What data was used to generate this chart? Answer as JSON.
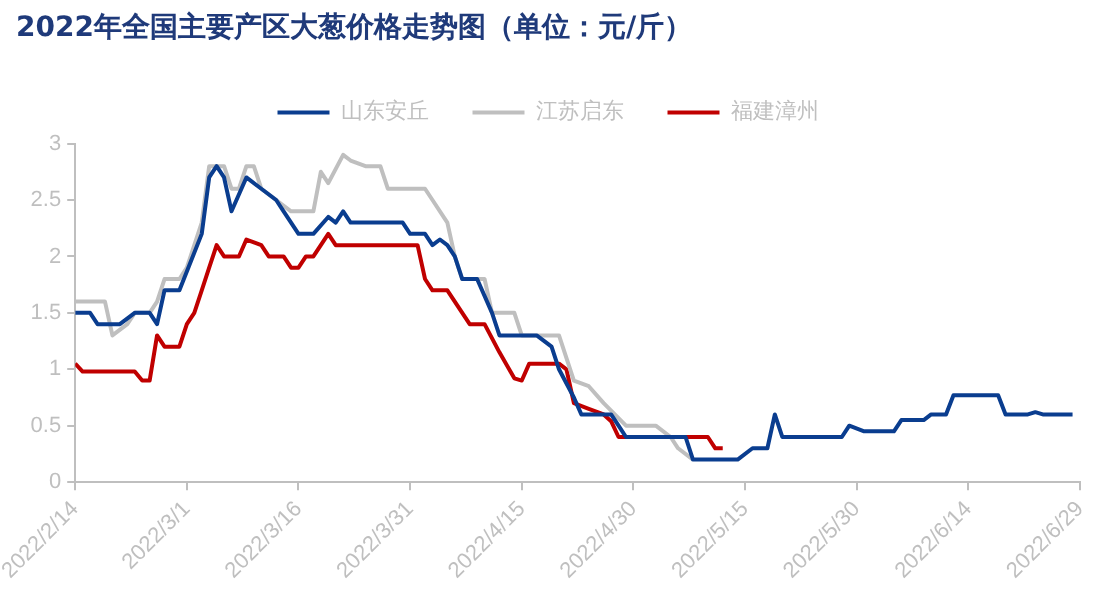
{
  "chart_data": {
    "type": "line",
    "title": "2022年全国主要产区大葱价格走势图（单位：元/斤）",
    "ylim": [
      0,
      3
    ],
    "yticks": [
      0,
      0.5,
      1,
      1.5,
      2,
      2.5,
      3
    ],
    "xlim": [
      "2022-02-14",
      "2022-06-29"
    ],
    "xticks": [
      {
        "value": "2022-02-14",
        "label": "2022/2/14"
      },
      {
        "value": "2022-03-01",
        "label": "2022/3/1"
      },
      {
        "value": "2022-03-16",
        "label": "2022/3/16"
      },
      {
        "value": "2022-03-31",
        "label": "2022/3/31"
      },
      {
        "value": "2022-04-15",
        "label": "2022/4/15"
      },
      {
        "value": "2022-04-30",
        "label": "2022/4/30"
      },
      {
        "value": "2022-05-15",
        "label": "2022/5/15"
      },
      {
        "value": "2022-05-30",
        "label": "2022/5/30"
      },
      {
        "value": "2022-06-14",
        "label": "2022/6/14"
      },
      {
        "value": "2022-06-29",
        "label": "2022/6/29"
      }
    ],
    "grid": false,
    "legend": "top",
    "marker": "none",
    "line_style": "solid",
    "series": [
      {
        "name": "山东安丘",
        "color": "#0a3d8f",
        "x": [
          "2022-02-14",
          "2022-02-16",
          "2022-02-17",
          "2022-02-20",
          "2022-02-22",
          "2022-02-24",
          "2022-02-25",
          "2022-02-26",
          "2022-02-28",
          "2022-03-03",
          "2022-03-04",
          "2022-03-05",
          "2022-03-06",
          "2022-03-07",
          "2022-03-09",
          "2022-03-11",
          "2022-03-13",
          "2022-03-14",
          "2022-03-16",
          "2022-03-18",
          "2022-03-20",
          "2022-03-21",
          "2022-03-22",
          "2022-03-23",
          "2022-03-30",
          "2022-03-31",
          "2022-04-02",
          "2022-04-03",
          "2022-04-04",
          "2022-04-05",
          "2022-04-06",
          "2022-04-07",
          "2022-04-09",
          "2022-04-11",
          "2022-04-12",
          "2022-04-17",
          "2022-04-19",
          "2022-04-20",
          "2022-04-22",
          "2022-04-23",
          "2022-04-27",
          "2022-04-28",
          "2022-04-29",
          "2022-05-07",
          "2022-05-08",
          "2022-05-14",
          "2022-05-16",
          "2022-05-18",
          "2022-05-19",
          "2022-05-20",
          "2022-05-28",
          "2022-05-29",
          "2022-05-31",
          "2022-06-04",
          "2022-06-05",
          "2022-06-08",
          "2022-06-09",
          "2022-06-11",
          "2022-06-12",
          "2022-06-18",
          "2022-06-19",
          "2022-06-22",
          "2022-06-23",
          "2022-06-24",
          "2022-06-28"
        ],
        "values": [
          1.5,
          1.5,
          1.4,
          1.4,
          1.5,
          1.5,
          1.4,
          1.7,
          1.7,
          2.2,
          2.7,
          2.8,
          2.7,
          2.4,
          2.7,
          2.6,
          2.5,
          2.4,
          2.2,
          2.2,
          2.35,
          2.3,
          2.4,
          2.3,
          2.3,
          2.2,
          2.2,
          2.1,
          2.15,
          2.1,
          2.0,
          1.8,
          1.8,
          1.5,
          1.3,
          1.3,
          1.2,
          1.0,
          0.75,
          0.6,
          0.6,
          0.5,
          0.4,
          0.4,
          0.2,
          0.2,
          0.3,
          0.3,
          0.6,
          0.4,
          0.4,
          0.5,
          0.45,
          0.45,
          0.55,
          0.55,
          0.6,
          0.6,
          0.77,
          0.77,
          0.6,
          0.6,
          0.62,
          0.6,
          0.6
        ]
      },
      {
        "name": "江苏启东",
        "color": "#bfbfbf",
        "x": [
          "2022-02-14",
          "2022-02-18",
          "2022-02-19",
          "2022-02-21",
          "2022-02-22",
          "2022-02-24",
          "2022-02-25",
          "2022-02-26",
          "2022-02-28",
          "2022-03-01",
          "2022-03-03",
          "2022-03-04",
          "2022-03-06",
          "2022-03-07",
          "2022-03-08",
          "2022-03-09",
          "2022-03-10",
          "2022-03-11",
          "2022-03-13",
          "2022-03-15",
          "2022-03-18",
          "2022-03-19",
          "2022-03-20",
          "2022-03-22",
          "2022-03-23",
          "2022-03-25",
          "2022-03-27",
          "2022-03-28",
          "2022-04-02",
          "2022-04-03",
          "2022-04-05",
          "2022-04-06",
          "2022-04-07",
          "2022-04-10",
          "2022-04-11",
          "2022-04-14",
          "2022-04-15",
          "2022-04-20",
          "2022-04-22",
          "2022-04-24",
          "2022-04-26",
          "2022-04-29",
          "2022-05-03",
          "2022-05-05",
          "2022-05-06",
          "2022-05-08"
        ],
        "values": [
          1.6,
          1.6,
          1.3,
          1.4,
          1.5,
          1.5,
          1.6,
          1.8,
          1.8,
          1.9,
          2.3,
          2.8,
          2.8,
          2.6,
          2.6,
          2.8,
          2.8,
          2.6,
          2.5,
          2.4,
          2.4,
          2.75,
          2.65,
          2.9,
          2.85,
          2.8,
          2.8,
          2.6,
          2.6,
          2.5,
          2.3,
          2.0,
          1.8,
          1.8,
          1.5,
          1.5,
          1.3,
          1.3,
          0.9,
          0.85,
          0.7,
          0.5,
          0.5,
          0.4,
          0.3,
          0.2
        ]
      },
      {
        "name": "福建漳州",
        "color": "#c00000",
        "x": [
          "2022-02-14",
          "2022-02-15",
          "2022-02-22",
          "2022-02-23",
          "2022-02-24",
          "2022-02-25",
          "2022-02-26",
          "2022-02-28",
          "2022-03-01",
          "2022-03-02",
          "2022-03-03",
          "2022-03-04",
          "2022-03-05",
          "2022-03-06",
          "2022-03-08",
          "2022-03-09",
          "2022-03-11",
          "2022-03-12",
          "2022-03-14",
          "2022-03-15",
          "2022-03-16",
          "2022-03-17",
          "2022-03-18",
          "2022-03-20",
          "2022-03-21",
          "2022-04-01",
          "2022-04-02",
          "2022-04-03",
          "2022-04-05",
          "2022-04-08",
          "2022-04-10",
          "2022-04-12",
          "2022-04-14",
          "2022-04-15",
          "2022-04-16",
          "2022-04-20",
          "2022-04-21",
          "2022-04-22",
          "2022-04-24",
          "2022-04-26",
          "2022-04-27",
          "2022-04-28",
          "2022-05-10",
          "2022-05-11",
          "2022-05-12"
        ],
        "values": [
          1.05,
          0.98,
          0.98,
          0.9,
          0.9,
          1.3,
          1.2,
          1.2,
          1.4,
          1.5,
          1.7,
          1.9,
          2.1,
          2.0,
          2.0,
          2.15,
          2.1,
          2.0,
          2.0,
          1.9,
          1.9,
          2.0,
          2.0,
          2.2,
          2.1,
          2.1,
          1.8,
          1.7,
          1.7,
          1.4,
          1.4,
          1.15,
          0.92,
          0.9,
          1.05,
          1.05,
          1.0,
          0.7,
          0.65,
          0.6,
          0.54,
          0.4,
          0.4,
          0.3,
          0.3
        ]
      }
    ]
  }
}
